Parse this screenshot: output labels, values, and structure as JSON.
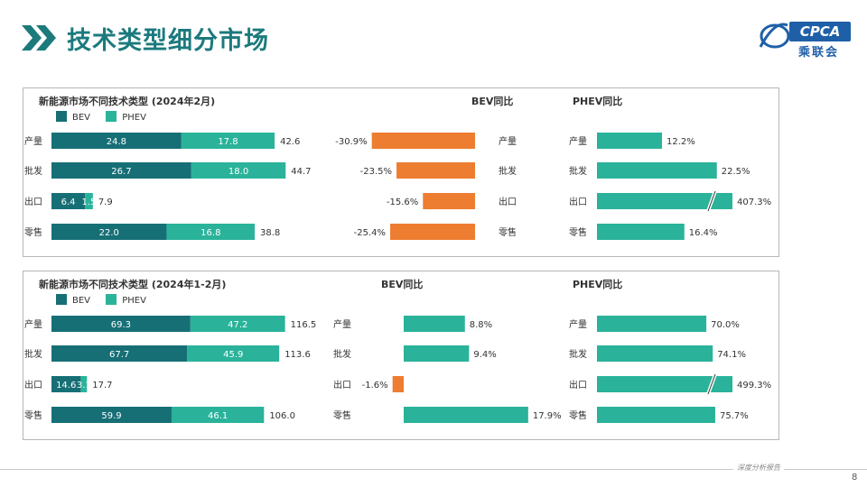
{
  "header": {
    "title": "技术类型细分市场"
  },
  "logo": {
    "text": "CPCA",
    "sub": "乘联会"
  },
  "colors": {
    "bev": "#176f76",
    "phev": "#2ab39a",
    "neg": "#ed7d31",
    "pos": "#2ab39a",
    "title": "#1c7a7d"
  },
  "legend": {
    "bev": "BEV",
    "phev": "PHEV"
  },
  "panels": [
    {
      "title": "新能源市场不同技术类型 (2024年2月)",
      "bev_head": "BEV同比",
      "phev_head": "PHEV同比",
      "categories": [
        "产量",
        "批发",
        "出口",
        "零售"
      ]
    },
    {
      "title": "新能源市场不同技术类型 (2024年1-2月)",
      "bev_head": "BEV同比",
      "phev_head": "PHEV同比",
      "categories": [
        "产量",
        "批发",
        "出口",
        "零售"
      ]
    }
  ],
  "chart_data": [
    {
      "type": "bar",
      "title": "新能源市场不同技术类型 (2024年2月)",
      "stacked": true,
      "categories": [
        "产量",
        "批发",
        "出口",
        "零售"
      ],
      "series": [
        {
          "name": "BEV",
          "values": [
            24.8,
            26.7,
            6.4,
            22.0
          ]
        },
        {
          "name": "PHEV",
          "values": [
            17.8,
            18.0,
            1.5,
            16.8
          ]
        }
      ],
      "totals": [
        42.6,
        44.7,
        7.9,
        38.8
      ]
    },
    {
      "type": "bar",
      "title": "BEV同比",
      "unit": "%",
      "categories": [
        "产量",
        "批发",
        "出口",
        "零售"
      ],
      "values": [
        -30.9,
        -23.5,
        -15.6,
        -25.4
      ]
    },
    {
      "type": "bar",
      "title": "PHEV同比",
      "unit": "%",
      "categories": [
        "产量",
        "批发",
        "出口",
        "零售"
      ],
      "values": [
        12.2,
        22.5,
        407.3,
        16.4
      ],
      "axis_break_on": [
        407.3
      ]
    },
    {
      "type": "bar",
      "title": "新能源市场不同技术类型 (2024年1-2月)",
      "stacked": true,
      "categories": [
        "产量",
        "批发",
        "出口",
        "零售"
      ],
      "series": [
        {
          "name": "BEV",
          "values": [
            69.3,
            67.7,
            14.6,
            59.9
          ]
        },
        {
          "name": "PHEV",
          "values": [
            47.2,
            45.9,
            3.1,
            46.1
          ]
        }
      ],
      "totals": [
        116.5,
        113.6,
        17.7,
        106.0
      ]
    },
    {
      "type": "bar",
      "title": "BEV同比",
      "unit": "%",
      "categories": [
        "产量",
        "批发",
        "出口",
        "零售"
      ],
      "values": [
        8.8,
        9.4,
        -1.6,
        17.9
      ]
    },
    {
      "type": "bar",
      "title": "PHEV同比",
      "unit": "%",
      "categories": [
        "产量",
        "批发",
        "出口",
        "零售"
      ],
      "values": [
        70.0,
        74.1,
        499.3,
        75.7
      ],
      "axis_break_on": [
        499.3
      ]
    }
  ],
  "footer": {
    "text": "深度分析报告",
    "page": "8"
  }
}
